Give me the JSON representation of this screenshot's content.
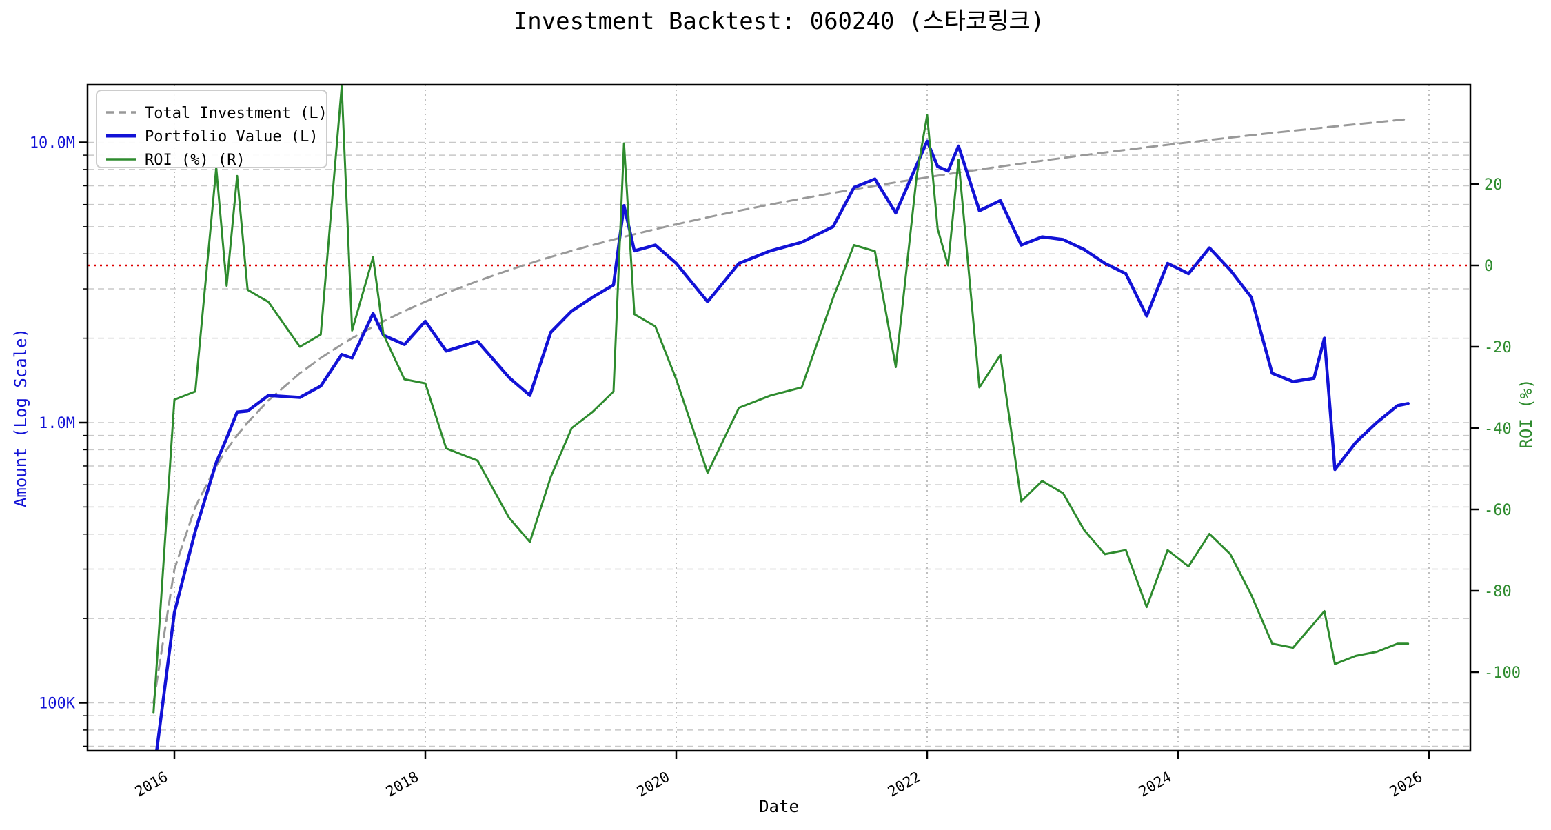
{
  "title": "Investment Backtest: 060240 (스타코링크)",
  "chart_data": {
    "type": "line",
    "title": "Investment Backtest: 060240 (스타코링크)",
    "xlabel": "Date",
    "ylabel_left": "Amount (Log Scale)",
    "ylabel_right": "ROI (%)",
    "y_left_scale": "log",
    "y_left_ticks": [
      {
        "value": 100000,
        "label": "100K"
      },
      {
        "value": 1000000,
        "label": "1.0M"
      },
      {
        "value": 10000000,
        "label": "10.0M"
      }
    ],
    "y_left_range": [
      66000,
      16000000
    ],
    "y_right_ticks": [
      20,
      0,
      -20,
      -40,
      -60,
      -80,
      -100
    ],
    "y_right_range": [
      -119,
      44.5
    ],
    "x_ticks": [
      "2016",
      "2018",
      "2020",
      "2022",
      "2024",
      "2026"
    ],
    "x_range_years": [
      2015.31,
      2026.33
    ],
    "grid": true,
    "zero_line": {
      "axis": "right",
      "value": 0
    },
    "legend_position": "upper left",
    "legend": [
      {
        "label": "Total Investment (L)",
        "style": "dashed",
        "color_key": "total_investment"
      },
      {
        "label": "Portfolio Value (L)",
        "style": "solid",
        "color_key": "portfolio_value"
      },
      {
        "label": "ROI (%) (R)",
        "style": "solid",
        "color_key": "roi"
      }
    ],
    "colors": {
      "total_investment": "#999999",
      "portfolio_value": "#1212d6",
      "roi": "#2e8b2e",
      "zero_line": "#dd0000",
      "axis_label_left": "#1212d6",
      "axis_label_right": "#2e8b2e",
      "grid_h": "#c8c8c8",
      "grid_v": "#aaaaaa",
      "axis": "#000000"
    },
    "x": [
      "2015-11",
      "2016-01",
      "2016-03",
      "2016-05",
      "2016-06",
      "2016-07",
      "2016-08",
      "2016-10",
      "2017-01",
      "2017-03",
      "2017-05",
      "2017-06",
      "2017-08",
      "2017-09",
      "2017-11",
      "2018-01",
      "2018-03",
      "2018-06",
      "2018-09",
      "2018-11",
      "2019-01",
      "2019-03",
      "2019-05",
      "2019-07",
      "2019-08",
      "2019-09",
      "2019-11",
      "2020-01",
      "2020-04",
      "2020-07",
      "2020-10",
      "2021-01",
      "2021-04",
      "2021-06",
      "2021-08",
      "2021-10",
      "2021-12",
      "2022-01",
      "2022-02",
      "2022-03",
      "2022-04",
      "2022-06",
      "2022-08",
      "2022-10",
      "2022-12",
      "2023-02",
      "2023-04",
      "2023-06",
      "2023-08",
      "2023-10",
      "2023-12",
      "2024-02",
      "2024-04",
      "2024-06",
      "2024-08",
      "2024-10",
      "2024-12",
      "2025-02",
      "2025-03",
      "2025-04",
      "2025-06",
      "2025-08",
      "2025-10",
      "2025-11"
    ],
    "series": [
      {
        "name": "Total Investment (L)",
        "axis": "left",
        "unit": "million",
        "style": "dashed",
        "color_key": "total_investment",
        "linewidth": 3,
        "values": [
          0.1,
          0.3,
          0.5,
          0.7,
          0.8,
          0.9,
          1.0,
          1.2,
          1.5,
          1.7,
          1.9,
          2.0,
          2.2,
          2.3,
          2.5,
          2.7,
          2.9,
          3.2,
          3.5,
          3.7,
          3.9,
          4.1,
          4.3,
          4.5,
          4.6,
          4.7,
          4.9,
          5.1,
          5.4,
          5.7,
          6.0,
          6.3,
          6.6,
          6.8,
          7.0,
          7.2,
          7.4,
          7.5,
          7.6,
          7.7,
          7.8,
          8.0,
          8.2,
          8.4,
          8.6,
          8.8,
          9.0,
          9.2,
          9.4,
          9.6,
          9.8,
          10.0,
          10.2,
          10.4,
          10.6,
          10.8,
          11.0,
          11.2,
          11.3,
          11.4,
          11.6,
          11.8,
          12.0,
          12.1
        ]
      },
      {
        "name": "Portfolio Value (L)",
        "axis": "left",
        "unit": "million",
        "style": "solid",
        "color_key": "portfolio_value",
        "linewidth": 4.5,
        "values": [
          0.055,
          0.21,
          0.41,
          0.72,
          0.88,
          1.09,
          1.1,
          1.25,
          1.23,
          1.35,
          1.75,
          1.7,
          2.45,
          2.05,
          1.9,
          2.3,
          1.8,
          1.95,
          1.45,
          1.25,
          2.1,
          2.5,
          2.8,
          3.1,
          5.95,
          4.1,
          4.3,
          3.7,
          2.7,
          3.7,
          4.1,
          4.4,
          5.0,
          6.9,
          7.4,
          5.6,
          8.3,
          10.1,
          8.2,
          7.9,
          9.7,
          5.7,
          6.2,
          4.3,
          4.6,
          4.5,
          4.15,
          3.7,
          3.4,
          2.4,
          3.7,
          3.4,
          4.2,
          3.5,
          2.8,
          1.5,
          1.4,
          1.44,
          2.0,
          0.68,
          0.85,
          1.0,
          1.15,
          1.17
        ]
      },
      {
        "name": "ROI (%) (R)",
        "axis": "right",
        "unit": "percent",
        "style": "solid",
        "color_key": "roi",
        "linewidth": 3,
        "values": [
          -110,
          -33,
          -31,
          24,
          -5,
          22,
          -6,
          -9,
          -20,
          -17,
          44,
          -16,
          2,
          -17,
          -28,
          -29,
          -45,
          -48,
          -62,
          -68,
          -52,
          -40,
          -36,
          -31,
          30,
          -12,
          -15,
          -28,
          -51,
          -35,
          -32,
          -30,
          -8,
          5,
          3.5,
          -25,
          22,
          37,
          9,
          0,
          26,
          -30,
          -22,
          -58,
          -53,
          -56,
          -65,
          -71,
          -70,
          -84,
          -70,
          -74,
          -66,
          -71,
          -81,
          -93,
          -94,
          -88,
          -85,
          -98,
          -96,
          -95,
          -93,
          -93
        ]
      }
    ]
  }
}
